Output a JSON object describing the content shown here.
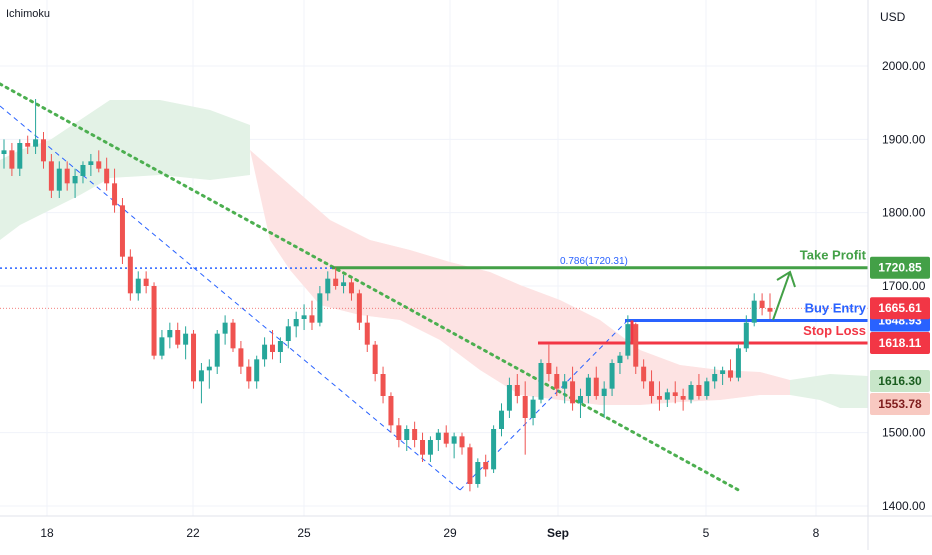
{
  "indicator": "Ichimoku",
  "currency": "USD",
  "colors": {
    "up": "#26a69a",
    "down": "#ef5350",
    "green_line": "#43a047",
    "blue_line": "#2962ff",
    "red_line": "#f23645",
    "fib_line": "#2962ff",
    "trend_dotted": "#4caf50",
    "trend_dashed": "#2962ff",
    "cloud_green": "#e3f2e6",
    "cloud_red": "#fde3e3"
  },
  "chart_data": {
    "type": "candlestick",
    "y_axis": {
      "ticks": [
        "2000.00",
        "1900.00",
        "1800.00",
        "1700.00",
        "1500.00",
        "1400.00"
      ]
    },
    "x_axis": {
      "ticks": [
        "18",
        "22",
        "25",
        "29",
        "Sep",
        "5",
        "8"
      ]
    },
    "levels": [
      {
        "name": "Take Profit",
        "value": 1720.85,
        "label": "Take Profit",
        "tag": "1720.85"
      },
      {
        "name": "Buy Entry",
        "value": 1648.93,
        "label": "Buy Entry",
        "tag": "1648.93"
      },
      {
        "name": "Stop Loss",
        "value": 1618.11,
        "label": "Stop Loss",
        "tag": "1618.11"
      }
    ],
    "fib": {
      "label": "0.786(1720.31)",
      "value": 1720.31
    },
    "price_tags": [
      {
        "value": 1665.61,
        "tag": "1665.61",
        "kind": "last"
      },
      {
        "value": 1616.3,
        "tag": "1616.30",
        "kind": "cloud_a"
      },
      {
        "value": 1553.78,
        "tag": "1553.78",
        "kind": "cloud_b"
      }
    ],
    "candles": [
      [
        1880,
        1900,
        1860,
        1885
      ],
      [
        1885,
        1895,
        1850,
        1860
      ],
      [
        1860,
        1900,
        1850,
        1895
      ],
      [
        1895,
        1905,
        1880,
        1890
      ],
      [
        1890,
        1955,
        1880,
        1900
      ],
      [
        1900,
        1910,
        1860,
        1870
      ],
      [
        1870,
        1880,
        1820,
        1830
      ],
      [
        1830,
        1870,
        1820,
        1860
      ],
      [
        1860,
        1870,
        1830,
        1840
      ],
      [
        1840,
        1860,
        1820,
        1850
      ],
      [
        1850,
        1870,
        1840,
        1865
      ],
      [
        1865,
        1880,
        1850,
        1870
      ],
      [
        1870,
        1885,
        1855,
        1860
      ],
      [
        1860,
        1875,
        1830,
        1840
      ],
      [
        1840,
        1860,
        1800,
        1810
      ],
      [
        1810,
        1820,
        1730,
        1740
      ],
      [
        1740,
        1750,
        1680,
        1690
      ],
      [
        1690,
        1720,
        1680,
        1710
      ],
      [
        1710,
        1720,
        1690,
        1700
      ],
      [
        1700,
        1705,
        1600,
        1605
      ],
      [
        1605,
        1640,
        1600,
        1630
      ],
      [
        1630,
        1650,
        1615,
        1640
      ],
      [
        1640,
        1650,
        1615,
        1620
      ],
      [
        1620,
        1645,
        1600,
        1635
      ],
      [
        1635,
        1640,
        1560,
        1570
      ],
      [
        1570,
        1595,
        1540,
        1585
      ],
      [
        1585,
        1600,
        1560,
        1590
      ],
      [
        1590,
        1640,
        1580,
        1635
      ],
      [
        1635,
        1660,
        1620,
        1650
      ],
      [
        1650,
        1655,
        1610,
        1615
      ],
      [
        1615,
        1625,
        1580,
        1590
      ],
      [
        1590,
        1600,
        1560,
        1570
      ],
      [
        1570,
        1605,
        1560,
        1600
      ],
      [
        1600,
        1630,
        1590,
        1620
      ],
      [
        1620,
        1640,
        1600,
        1610
      ],
      [
        1610,
        1630,
        1595,
        1625
      ],
      [
        1625,
        1655,
        1615,
        1645
      ],
      [
        1645,
        1665,
        1630,
        1655
      ],
      [
        1655,
        1675,
        1640,
        1660
      ],
      [
        1660,
        1680,
        1640,
        1650
      ],
      [
        1650,
        1700,
        1645,
        1690
      ],
      [
        1690,
        1720,
        1680,
        1710
      ],
      [
        1710,
        1725,
        1695,
        1700
      ],
      [
        1700,
        1715,
        1690,
        1705
      ],
      [
        1705,
        1710,
        1680,
        1690
      ],
      [
        1690,
        1695,
        1640,
        1650
      ],
      [
        1650,
        1660,
        1610,
        1620
      ],
      [
        1620,
        1625,
        1570,
        1580
      ],
      [
        1580,
        1590,
        1540,
        1550
      ],
      [
        1550,
        1555,
        1500,
        1510
      ],
      [
        1510,
        1520,
        1480,
        1490
      ],
      [
        1490,
        1510,
        1475,
        1505
      ],
      [
        1505,
        1515,
        1480,
        1490
      ],
      [
        1490,
        1500,
        1460,
        1470
      ],
      [
        1470,
        1495,
        1460,
        1490
      ],
      [
        1490,
        1505,
        1475,
        1500
      ],
      [
        1500,
        1510,
        1480,
        1485
      ],
      [
        1485,
        1500,
        1465,
        1495
      ],
      [
        1495,
        1500,
        1470,
        1480
      ],
      [
        1480,
        1485,
        1420,
        1430
      ],
      [
        1430,
        1465,
        1425,
        1460
      ],
      [
        1460,
        1470,
        1440,
        1450
      ],
      [
        1450,
        1510,
        1445,
        1505
      ],
      [
        1505,
        1540,
        1495,
        1530
      ],
      [
        1530,
        1575,
        1520,
        1565
      ],
      [
        1565,
        1580,
        1540,
        1550
      ],
      [
        1550,
        1570,
        1470,
        1520
      ],
      [
        1520,
        1550,
        1510,
        1545
      ],
      [
        1545,
        1600,
        1540,
        1595
      ],
      [
        1595,
        1620,
        1570,
        1580
      ],
      [
        1580,
        1590,
        1550,
        1560
      ],
      [
        1560,
        1580,
        1540,
        1570
      ],
      [
        1570,
        1590,
        1530,
        1540
      ],
      [
        1540,
        1560,
        1520,
        1550
      ],
      [
        1550,
        1580,
        1540,
        1575
      ],
      [
        1575,
        1590,
        1545,
        1550
      ],
      [
        1550,
        1570,
        1520,
        1560
      ],
      [
        1560,
        1600,
        1550,
        1595
      ],
      [
        1595,
        1610,
        1580,
        1605
      ],
      [
        1605,
        1660,
        1600,
        1648
      ],
      [
        1648,
        1650,
        1580,
        1590
      ],
      [
        1590,
        1600,
        1560,
        1570
      ],
      [
        1570,
        1585,
        1540,
        1550
      ],
      [
        1550,
        1570,
        1530,
        1545
      ],
      [
        1545,
        1560,
        1535,
        1555
      ],
      [
        1555,
        1570,
        1540,
        1550
      ],
      [
        1550,
        1560,
        1530,
        1545
      ],
      [
        1545,
        1570,
        1540,
        1565
      ],
      [
        1565,
        1580,
        1545,
        1550
      ],
      [
        1550,
        1575,
        1545,
        1570
      ],
      [
        1570,
        1590,
        1560,
        1580
      ],
      [
        1580,
        1590,
        1565,
        1585
      ],
      [
        1585,
        1600,
        1570,
        1575
      ],
      [
        1575,
        1620,
        1570,
        1615
      ],
      [
        1615,
        1660,
        1610,
        1650
      ],
      [
        1650,
        1690,
        1645,
        1680
      ],
      [
        1680,
        1690,
        1660,
        1670
      ],
      [
        1670,
        1690,
        1655,
        1665
      ]
    ]
  }
}
